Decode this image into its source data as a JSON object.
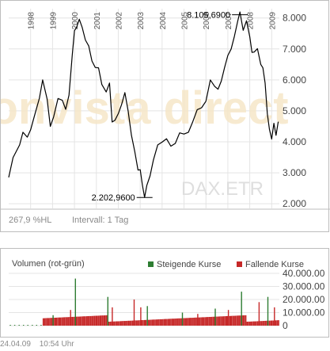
{
  "chart_data": [
    {
      "type": "line",
      "x_ticks": [
        "1998",
        "1999",
        "2000",
        "2001",
        "2002",
        "2003",
        "2004",
        "2005",
        "2006",
        "2007",
        "2008",
        "2009"
      ],
      "y_ticks": [
        "8.000",
        "7.000",
        "6.000",
        "5.000",
        "4.000",
        "3.000",
        "2.000"
      ],
      "ylim": [
        1850,
        8300
      ],
      "xlim": [
        1997.0,
        2009.35
      ],
      "grid": true,
      "watermark": "DAX.ETR",
      "brand_watermark": "onvista direct",
      "annotations": [
        {
          "label": "8.105,6900",
          "x": 2007.55,
          "y": 8105.69
        },
        {
          "label": "2.202,9600",
          "x": 2003.2,
          "y": 2202.96
        }
      ],
      "series": [
        {
          "color": "#000000",
          "x": [
            1997.0,
            1997.2,
            1997.5,
            1997.65,
            1997.85,
            1998.0,
            1998.2,
            1998.4,
            1998.55,
            1998.75,
            1998.9,
            1999.05,
            1999.25,
            1999.45,
            1999.6,
            1999.75,
            1999.9,
            2000.0,
            2000.1,
            2000.22,
            2000.35,
            2000.5,
            2000.65,
            2000.8,
            2000.95,
            2001.1,
            2001.25,
            2001.45,
            2001.6,
            2001.72,
            2001.85,
            2002.0,
            2002.15,
            2002.3,
            2002.45,
            2002.6,
            2002.75,
            2002.9,
            2003.0,
            2003.1,
            2003.2,
            2003.3,
            2003.45,
            2003.6,
            2003.8,
            2004.0,
            2004.2,
            2004.4,
            2004.6,
            2004.8,
            2005.0,
            2005.2,
            2005.4,
            2005.6,
            2005.8,
            2006.0,
            2006.2,
            2006.4,
            2006.55,
            2006.7,
            2006.85,
            2007.0,
            2007.15,
            2007.3,
            2007.45,
            2007.55,
            2007.7,
            2007.85,
            2008.0,
            2008.1,
            2008.2,
            2008.35,
            2008.5,
            2008.6,
            2008.7,
            2008.8,
            2008.9,
            2009.0,
            2009.1,
            2009.2,
            2009.3
          ],
          "y": [
            2850,
            3400,
            3900,
            4400,
            4150,
            4300,
            4900,
            5500,
            6000,
            5300,
            4500,
            4900,
            5400,
            5250,
            5050,
            5600,
            6800,
            7500,
            7700,
            8050,
            7700,
            7200,
            7100,
            6700,
            6400,
            6300,
            5850,
            5700,
            5900,
            4550,
            4700,
            5000,
            5200,
            5500,
            5000,
            4300,
            3700,
            3000,
            3100,
            2700,
            2202.96,
            2500,
            2900,
            3500,
            3900,
            3900,
            4100,
            3950,
            3950,
            4200,
            4250,
            4400,
            4650,
            4950,
            5100,
            5400,
            6000,
            5700,
            5700,
            6050,
            6400,
            6700,
            7000,
            7500,
            7900,
            8105.69,
            7600,
            8000,
            7400,
            6800,
            6900,
            7100,
            6500,
            6300,
            5900,
            5000,
            4400,
            4000,
            4600,
            4300,
            4650
          ]
        }
      ],
      "info_left": "267,9 %HL",
      "info_right": "Intervall: 1 Tag"
    },
    {
      "type": "bar",
      "title": "Volumen (rot-grün)",
      "y_ticks": [
        "40.000.00",
        "30.000.00",
        "20.000.00",
        "10.000.00",
        "0"
      ],
      "ylim": [
        0,
        40000000
      ],
      "legend": [
        {
          "label": "Steigende Kurse",
          "color": "#2e7d32"
        },
        {
          "label": "Fallende Kurse",
          "color": "#c62828"
        }
      ],
      "legend_placement": "top-right",
      "series": [
        {
          "name": "Steigende Kurse",
          "x": [
            1999.0,
            2000.02,
            2001.5,
            2003.3,
            2004.9,
            2006.4,
            2007.6,
            2008.8
          ],
          "y": [
            8000000,
            36000000,
            22000000,
            15000000,
            10000000,
            13000000,
            26000000,
            22000000
          ]
        },
        {
          "name": "Fallende Kurse",
          "x": [
            1999.8,
            2001.7,
            2002.7,
            2003.0,
            2005.6,
            2007.0,
            2008.4,
            2009.1
          ],
          "y": [
            12000000,
            14000000,
            20000000,
            14000000,
            9000000,
            12000000,
            18000000,
            14000000
          ]
        }
      ]
    }
  ],
  "footer": {
    "date": "24.04.09",
    "time": "10:54 Uhr"
  }
}
